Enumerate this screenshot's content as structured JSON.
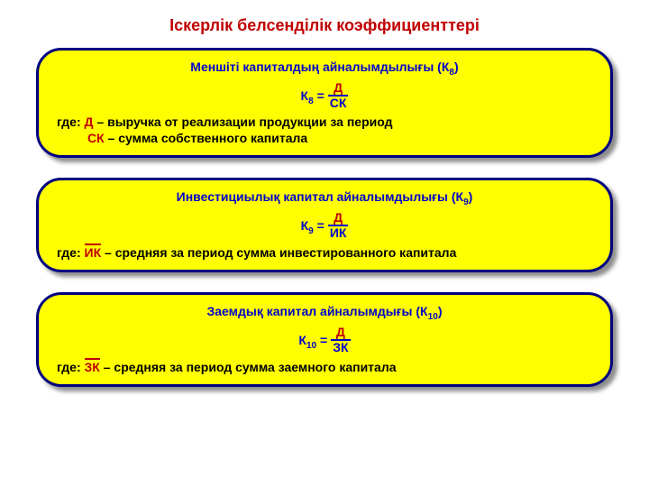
{
  "colors": {
    "title": "#c00000",
    "box_bg": "#ffff00",
    "box_border": "#000080",
    "heading": "#0000cc",
    "formula_left": "#0000cc",
    "numerator": "#c00000",
    "denominator": "#0000cc",
    "where_text": "#000000",
    "where_sym": "#c00000",
    "where_sym2": "#c00000"
  },
  "title": "Іскерлік белсенділік коэффициенттері",
  "boxes": [
    {
      "heading_pre": "Меншіті капиталдың айналымдылығы (К",
      "heading_sub": "8",
      "heading_post": ")",
      "coef": "К",
      "coef_sub": "8",
      "eq": " = ",
      "num": "Д",
      "den": "СК",
      "den_overline": false,
      "where_lines": [
        {
          "pre": "где: ",
          "sym": "Д",
          "sym_over": false,
          "post": " – выручка от реализации продукции за период"
        },
        {
          "pre": "",
          "sym": "СК",
          "sym_over": false,
          "post": " – сумма собственного капитала",
          "indent": true
        }
      ]
    },
    {
      "heading_pre": "Инвестициылық капитал айналымдылығы (К",
      "heading_sub": "9",
      "heading_post": ")",
      "coef": "К",
      "coef_sub": "9",
      "eq": " = ",
      "num": "Д",
      "den": "ИК",
      "den_overline": true,
      "where_lines": [
        {
          "pre": "где: ",
          "sym": "ИК",
          "sym_over": true,
          "post": " – средняя за период сумма инвестированного капитала"
        }
      ]
    },
    {
      "heading_pre": "Заемдық капитал айналымдығы (К",
      "heading_sub": "10",
      "heading_post": ")",
      "coef": "К",
      "coef_sub": "10",
      "eq": " = ",
      "num": "Д",
      "den": "ЗК",
      "den_overline": true,
      "where_lines": [
        {
          "pre": "где: ",
          "sym": "ЗК",
          "sym_over": true,
          "post": " – средняя за период сумма заемного капитала"
        }
      ]
    }
  ]
}
